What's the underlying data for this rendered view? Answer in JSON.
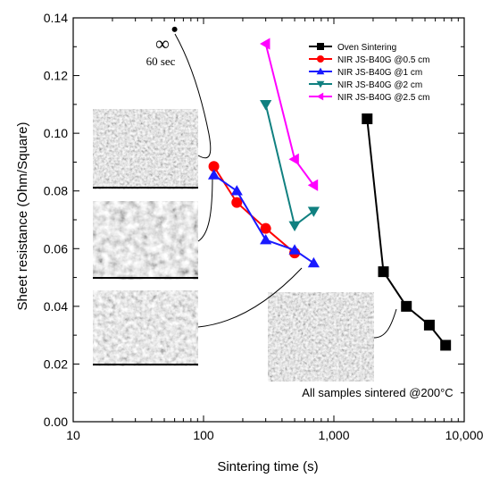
{
  "chart_data": {
    "type": "scatter",
    "title": "",
    "xlabel": "Sintering time (s)",
    "ylabel": "Sheet resistance (Ohm/Square)",
    "xscale": "log",
    "xlim": [
      10,
      10000
    ],
    "ylim": [
      0.0,
      0.14
    ],
    "xticks": [
      10,
      100,
      1000,
      10000
    ],
    "xtick_labels": [
      "10",
      "100",
      "1,000",
      "10,000"
    ],
    "yticks": [
      0.0,
      0.02,
      0.04,
      0.06,
      0.08,
      0.1,
      0.12,
      0.14
    ],
    "ytick_labels": [
      "0.00",
      "0.02",
      "0.04",
      "0.06",
      "0.08",
      "0.10",
      "0.12",
      "0.14"
    ],
    "grid": false,
    "legend_position": "top-right",
    "series": [
      {
        "name": "Oven Sintering",
        "color": "#000000",
        "marker": "square",
        "x": [
          1800,
          2400,
          3600,
          5400,
          7200
        ],
        "y": [
          0.105,
          0.052,
          0.04,
          0.0335,
          0.0265
        ]
      },
      {
        "name": "NIR JS-B40G @0.5 cm",
        "color": "#ff0000",
        "marker": "circle",
        "x": [
          120,
          180,
          300,
          500
        ],
        "y": [
          0.0885,
          0.076,
          0.067,
          0.0585
        ]
      },
      {
        "name": "NIR JS-B40G @1 cm",
        "color": "#1a1aff",
        "marker": "triangle-up",
        "x": [
          120,
          180,
          300,
          500,
          700
        ],
        "y": [
          0.0855,
          0.08,
          0.063,
          0.0595,
          0.055
        ]
      },
      {
        "name": "NIR JS-B40G @2 cm",
        "color": "#108080",
        "marker": "triangle-down",
        "x": [
          300,
          500,
          700
        ],
        "y": [
          0.11,
          0.068,
          0.073
        ]
      },
      {
        "name": "NIR JS-B40G @2.5 cm",
        "color": "#ff00ff",
        "marker": "triangle-left",
        "x": [
          300,
          500,
          700
        ],
        "y": [
          0.131,
          0.091,
          0.082
        ]
      }
    ],
    "extra_point": {
      "x": 60,
      "y": 0.136
    },
    "annotations": {
      "infinity": "∞",
      "sec_label": "60 sec",
      "note": "All samples sintered @200°C"
    }
  }
}
